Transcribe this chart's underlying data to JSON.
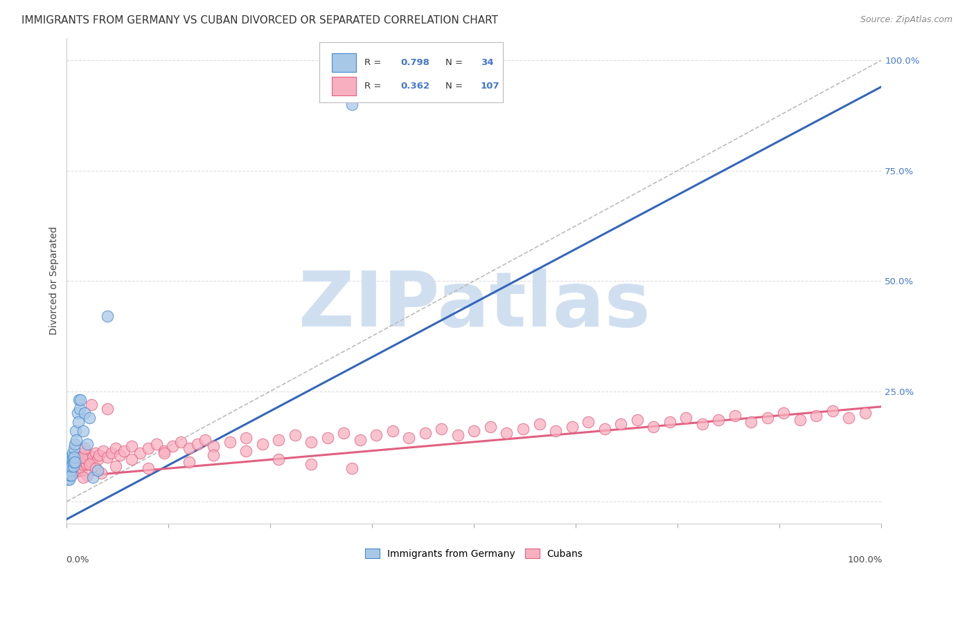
{
  "title": "IMMIGRANTS FROM GERMANY VS CUBAN DIVORCED OR SEPARATED CORRELATION CHART",
  "source": "Source: ZipAtlas.com",
  "ylabel": "Divorced or Separated",
  "legend_label1": "Immigrants from Germany",
  "legend_label2": "Cubans",
  "R1": 0.798,
  "N1": 34,
  "R2": 0.362,
  "N2": 107,
  "blue_color": "#a8c8e8",
  "blue_edge_color": "#4488cc",
  "blue_line_color": "#3366bb",
  "pink_color": "#f8b0c0",
  "pink_edge_color": "#e06080",
  "pink_line_color": "#e06080",
  "ref_line_color": "#bbbbbb",
  "watermark_color": "#d0dff0",
  "background_color": "#ffffff",
  "grid_color": "#dddddd",
  "ytick_color": "#4477cc",
  "title_fontsize": 11,
  "source_fontsize": 9,
  "axis_label_fontsize": 10,
  "tick_fontsize": 9.5,
  "blue_trend_slope": 0.98,
  "blue_trend_intercept": -0.04,
  "pink_trend_slope": 0.16,
  "pink_trend_intercept": 0.055,
  "blue_x": [
    0.001,
    0.002,
    0.002,
    0.003,
    0.003,
    0.004,
    0.004,
    0.005,
    0.005,
    0.006,
    0.006,
    0.007,
    0.007,
    0.008,
    0.008,
    0.009,
    0.009,
    0.01,
    0.01,
    0.011,
    0.012,
    0.013,
    0.014,
    0.015,
    0.016,
    0.017,
    0.02,
    0.022,
    0.025,
    0.028,
    0.032,
    0.038,
    0.05,
    0.35
  ],
  "blue_y": [
    0.05,
    0.06,
    0.07,
    0.08,
    0.05,
    0.06,
    0.09,
    0.07,
    0.1,
    0.06,
    0.08,
    0.1,
    0.11,
    0.08,
    0.09,
    0.12,
    0.1,
    0.13,
    0.09,
    0.16,
    0.14,
    0.2,
    0.18,
    0.23,
    0.21,
    0.23,
    0.16,
    0.2,
    0.13,
    0.19,
    0.055,
    0.07,
    0.42,
    0.9
  ],
  "pink_x": [
    0.001,
    0.002,
    0.003,
    0.004,
    0.005,
    0.006,
    0.007,
    0.008,
    0.009,
    0.01,
    0.011,
    0.012,
    0.013,
    0.014,
    0.015,
    0.016,
    0.017,
    0.018,
    0.019,
    0.02,
    0.021,
    0.022,
    0.023,
    0.024,
    0.025,
    0.027,
    0.03,
    0.032,
    0.035,
    0.038,
    0.04,
    0.045,
    0.05,
    0.055,
    0.06,
    0.065,
    0.07,
    0.08,
    0.09,
    0.1,
    0.11,
    0.12,
    0.13,
    0.14,
    0.15,
    0.16,
    0.17,
    0.18,
    0.2,
    0.22,
    0.24,
    0.26,
    0.28,
    0.3,
    0.32,
    0.34,
    0.36,
    0.38,
    0.4,
    0.42,
    0.44,
    0.46,
    0.48,
    0.5,
    0.52,
    0.54,
    0.56,
    0.58,
    0.6,
    0.62,
    0.64,
    0.66,
    0.68,
    0.7,
    0.72,
    0.74,
    0.76,
    0.78,
    0.8,
    0.82,
    0.84,
    0.86,
    0.88,
    0.9,
    0.92,
    0.94,
    0.96,
    0.98,
    0.05,
    0.03,
    0.025,
    0.02,
    0.018,
    0.022,
    0.028,
    0.035,
    0.042,
    0.06,
    0.08,
    0.1,
    0.12,
    0.15,
    0.18,
    0.22,
    0.26,
    0.3,
    0.35
  ],
  "pink_y": [
    0.065,
    0.07,
    0.08,
    0.06,
    0.09,
    0.075,
    0.065,
    0.085,
    0.07,
    0.08,
    0.09,
    0.07,
    0.085,
    0.095,
    0.08,
    0.09,
    0.1,
    0.075,
    0.085,
    0.095,
    0.11,
    0.09,
    0.1,
    0.085,
    0.095,
    0.105,
    0.09,
    0.1,
    0.11,
    0.095,
    0.105,
    0.115,
    0.1,
    0.11,
    0.12,
    0.105,
    0.115,
    0.125,
    0.11,
    0.12,
    0.13,
    0.115,
    0.125,
    0.135,
    0.12,
    0.13,
    0.14,
    0.125,
    0.135,
    0.145,
    0.13,
    0.14,
    0.15,
    0.135,
    0.145,
    0.155,
    0.14,
    0.15,
    0.16,
    0.145,
    0.155,
    0.165,
    0.15,
    0.16,
    0.17,
    0.155,
    0.165,
    0.175,
    0.16,
    0.17,
    0.18,
    0.165,
    0.175,
    0.185,
    0.17,
    0.18,
    0.19,
    0.175,
    0.185,
    0.195,
    0.18,
    0.19,
    0.2,
    0.185,
    0.195,
    0.205,
    0.19,
    0.2,
    0.21,
    0.22,
    0.06,
    0.055,
    0.1,
    0.12,
    0.085,
    0.075,
    0.065,
    0.08,
    0.095,
    0.075,
    0.11,
    0.09,
    0.105,
    0.115,
    0.095,
    0.085,
    0.075
  ]
}
